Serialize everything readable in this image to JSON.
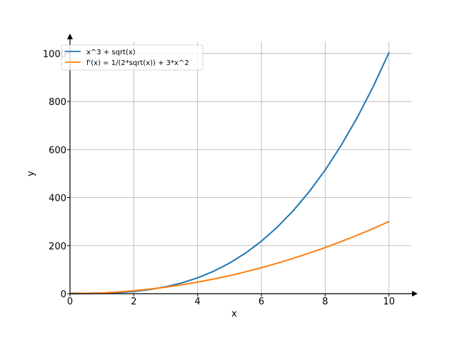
{
  "chart_data": {
    "type": "line",
    "title": "",
    "xlabel": "x",
    "ylabel": "y",
    "xlim": [
      0,
      10.7
    ],
    "ylim": [
      0,
      1050
    ],
    "grid": true,
    "legend_position": "top-left",
    "xticks": [
      0,
      2,
      4,
      6,
      8,
      10
    ],
    "yticks": [
      0,
      200,
      400,
      600,
      800,
      1000
    ],
    "series": [
      {
        "name": "x^3 + sqrt(x)",
        "color": "#1f77b4",
        "x": [
          0,
          0.5,
          1,
          1.5,
          2,
          2.5,
          3,
          3.5,
          4,
          4.5,
          5,
          5.5,
          6,
          6.5,
          7,
          7.5,
          8,
          8.5,
          9,
          9.5,
          10
        ],
        "values": [
          0,
          0.83,
          2,
          4.6,
          9.41,
          17.21,
          28.73,
          44.75,
          66,
          93.25,
          127.24,
          168.72,
          218.45,
          277.17,
          345.65,
          424.61,
          514.83,
          617.04,
          732,
          860.46,
          1003.16
        ]
      },
      {
        "name": "f'(x) = 1/(2*sqrt(x)) + 3*x^2",
        "color": "#ff7f0e",
        "x": [
          0.05,
          0.5,
          1,
          1.5,
          2,
          2.5,
          3,
          3.5,
          4,
          4.5,
          5,
          5.5,
          6,
          6.5,
          7,
          7.5,
          8,
          8.5,
          9,
          9.5,
          10
        ],
        "values": [
          2.24,
          1.46,
          3.5,
          7.16,
          12.35,
          19.07,
          27.29,
          37.02,
          48.25,
          60.99,
          75.22,
          90.96,
          108.2,
          126.95,
          147.19,
          168.93,
          192.18,
          216.92,
          243.17,
          270.91,
          300.16
        ]
      }
    ]
  }
}
